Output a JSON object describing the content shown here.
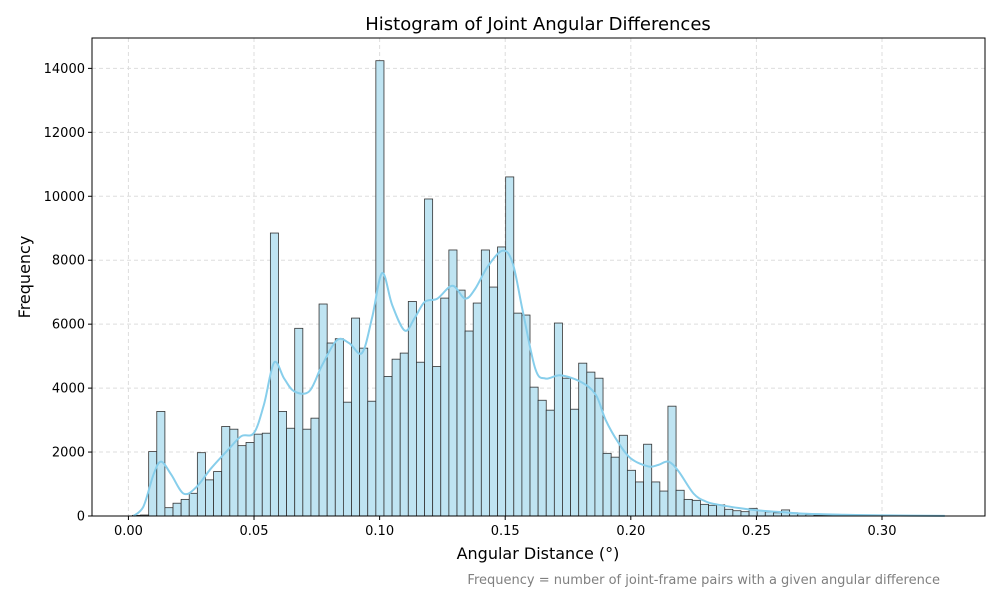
{
  "chart_data": {
    "type": "bar",
    "title": "Histogram of Joint Angular Differences",
    "xlabel": "Angular Distance (°)",
    "ylabel": "Frequency",
    "footnote": "Frequency = number of joint-frame pairs with a given angular difference",
    "xlim": [
      -0.0145,
      0.341
    ],
    "ylim": [
      0,
      14950
    ],
    "grid": true,
    "bar_color": "#bfe4f2",
    "edge_color": "#333333",
    "kde_color": "#87ceeb",
    "bin_start": 0.0016,
    "bin_width": 0.00323,
    "xticks": [
      "0.00",
      "0.05",
      "0.10",
      "0.15",
      "0.20",
      "0.25",
      "0.30"
    ],
    "xtick_values": [
      0,
      0.05,
      0.1,
      0.15,
      0.2,
      0.25,
      0.3
    ],
    "yticks": [
      "0",
      "2000",
      "4000",
      "6000",
      "8000",
      "10000",
      "12000",
      "14000"
    ],
    "ytick_values": [
      0,
      2000,
      4000,
      6000,
      8000,
      10000,
      12000,
      14000
    ],
    "values": [
      20,
      30,
      2015,
      3270,
      260,
      400,
      520,
      710,
      1980,
      1130,
      1390,
      2800,
      2715,
      2200,
      2300,
      2560,
      2590,
      8850,
      3270,
      2745,
      5870,
      2715,
      3060,
      6630,
      5410,
      5545,
      3560,
      6190,
      5250,
      3590,
      14240,
      4365,
      4905,
      5095,
      6710,
      4810,
      9915,
      4675,
      6815,
      8320,
      7065,
      5785,
      6660,
      8320,
      7160,
      8415,
      10605,
      6345,
      6285,
      4030,
      3620,
      3310,
      6035,
      4310,
      3340,
      4780,
      4500,
      4310,
      1960,
      1840,
      2525,
      1430,
      1065,
      2245,
      1065,
      780,
      3435,
      805,
      520,
      490,
      365,
      335,
      350,
      210,
      165,
      135,
      240,
      170,
      130,
      100,
      190,
      100,
      60,
      50,
      30,
      30,
      25,
      20,
      18,
      15,
      12,
      10,
      8,
      7,
      6,
      5,
      4,
      3,
      2,
      2
    ],
    "kde": [
      [
        0.002,
        0
      ],
      [
        0.006,
        300
      ],
      [
        0.01,
        1300
      ],
      [
        0.013,
        1700
      ],
      [
        0.017,
        1300
      ],
      [
        0.022,
        700
      ],
      [
        0.027,
        900
      ],
      [
        0.033,
        1500
      ],
      [
        0.04,
        2100
      ],
      [
        0.045,
        2500
      ],
      [
        0.05,
        2600
      ],
      [
        0.054,
        3500
      ],
      [
        0.058,
        4800
      ],
      [
        0.062,
        4300
      ],
      [
        0.066,
        3900
      ],
      [
        0.072,
        3900
      ],
      [
        0.077,
        4700
      ],
      [
        0.083,
        5500
      ],
      [
        0.088,
        5400
      ],
      [
        0.093,
        5100
      ],
      [
        0.097,
        6200
      ],
      [
        0.101,
        7600
      ],
      [
        0.105,
        6600
      ],
      [
        0.11,
        5800
      ],
      [
        0.114,
        6200
      ],
      [
        0.118,
        6700
      ],
      [
        0.123,
        6800
      ],
      [
        0.129,
        7200
      ],
      [
        0.134,
        6800
      ],
      [
        0.138,
        7100
      ],
      [
        0.143,
        7800
      ],
      [
        0.149,
        8300
      ],
      [
        0.153,
        7900
      ],
      [
        0.157,
        6400
      ],
      [
        0.162,
        4600
      ],
      [
        0.166,
        4300
      ],
      [
        0.172,
        4400
      ],
      [
        0.18,
        4200
      ],
      [
        0.186,
        3800
      ],
      [
        0.19,
        3000
      ],
      [
        0.195,
        2300
      ],
      [
        0.2,
        1800
      ],
      [
        0.207,
        1550
      ],
      [
        0.211,
        1600
      ],
      [
        0.215,
        1700
      ],
      [
        0.219,
        1400
      ],
      [
        0.225,
        700
      ],
      [
        0.23,
        450
      ],
      [
        0.235,
        350
      ],
      [
        0.243,
        250
      ],
      [
        0.25,
        180
      ],
      [
        0.26,
        120
      ],
      [
        0.27,
        70
      ],
      [
        0.285,
        40
      ],
      [
        0.3,
        20
      ],
      [
        0.325,
        5
      ]
    ]
  }
}
